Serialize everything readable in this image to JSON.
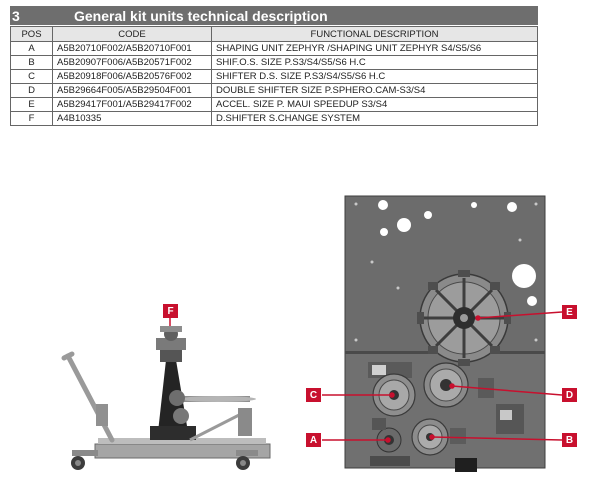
{
  "section": {
    "number": "3",
    "title": "General kit units technical description"
  },
  "table": {
    "headers": [
      "POS",
      "CODE",
      "FUNCTIONAL DESCRIPTION"
    ],
    "rows": [
      {
        "pos": "A",
        "code": "A5B20710F002/A5B20710F001",
        "desc": "SHAPING UNIT ZEPHYR /SHAPING UNIT ZEPHYR S4/S5/S6"
      },
      {
        "pos": "B",
        "code": "A5B20907F006/A5B20571F002",
        "desc": "SHIF.O.S. SIZE P.S3/S4/S5/S6 H.C"
      },
      {
        "pos": "C",
        "code": "A5B20918F006/A5B20576F002",
        "desc": "SHIFTER D.S. SIZE P.S3/S4/S5/S6 H.C"
      },
      {
        "pos": "D",
        "code": "A5B29664F005/A5B29504F001",
        "desc": "DOUBLE SHIFTER SIZE P.SPHERO.CAM-S3/S4"
      },
      {
        "pos": "E",
        "code": "A5B29417F001/A5B29417F002",
        "desc": "ACCEL. SIZE P. MAUI SPEEDUP S3/S4"
      },
      {
        "pos": "F",
        "code": "A4B10335",
        "desc": "D.SHIFTER S.CHANGE SYSTEM"
      }
    ]
  },
  "callouts": {
    "a": "A",
    "b": "B",
    "c": "C",
    "d": "D",
    "e": "E",
    "f": "F"
  },
  "colors": {
    "accent": "#c8102e",
    "header_bg": "#6e6e6e",
    "table_head_bg": "#e6e6e6"
  }
}
